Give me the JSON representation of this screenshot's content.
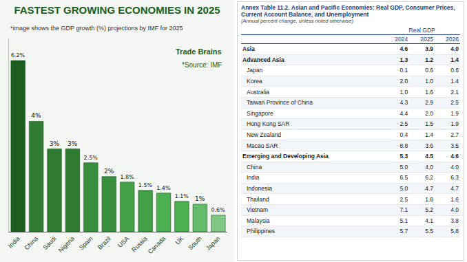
{
  "chart_data": {
    "type": "bar",
    "title": "FASTEST GROWING ECONOMIES IN 2025",
    "subtitle": "*image shows the GDP growth (%) projections by IMF for 2025",
    "annotations": [
      "Trade Brains",
      "*Source: IMF"
    ],
    "categories": [
      "India",
      "China",
      "Saudi",
      "Nigeria",
      "Spain",
      "Brazil",
      "USA",
      "Russia",
      "Canada",
      "UK",
      "South",
      "Japan"
    ],
    "values": [
      6.2,
      4,
      3,
      3,
      2.5,
      2,
      1.8,
      1.5,
      1.4,
      1.1,
      1,
      0.6
    ],
    "value_labels": [
      "6.2%",
      "4%",
      "3%",
      "3%",
      "2.5%",
      "2%",
      "1.8%",
      "1.5%",
      "1.4%",
      "1.1%",
      "1%",
      "0.6%"
    ],
    "colors": [
      "#1b5e20",
      "#2e7d32",
      "#2e7d32",
      "#2e7d32",
      "#388e3c",
      "#388e3c",
      "#43a047",
      "#43a047",
      "#4caf50",
      "#4caf50",
      "#66bb6a",
      "#81c784"
    ],
    "ylim": [
      0,
      7
    ],
    "yticks": [],
    "grid": false,
    "data_labels": true,
    "tick_labels": "x"
  },
  "table": {
    "title": "Annex Table 11.2. Asian and Pacific Economies: Real GDP, Consumer Prices, Current Account Balance, and Unemployment",
    "subtitle": "(Annual percent change, unless noted otherwise)",
    "group_header": "Real GDP",
    "columns": [
      "2024",
      "2025",
      "2026"
    ],
    "rows": [
      [
        "Asia",
        "4.6",
        "3.9",
        "4.0"
      ],
      [
        "Advanced Asia",
        "1.3",
        "1.2",
        "1.4"
      ],
      [
        "Japan",
        "0.1",
        "0.6",
        "0.6"
      ],
      [
        "Korea",
        "2.0",
        "1.0",
        "1.4"
      ],
      [
        "Australia",
        "1.0",
        "1.6",
        "2.1"
      ],
      [
        "Taiwan Province of China",
        "4.3",
        "2.9",
        "2.5"
      ],
      [
        "Singapore",
        "4.4",
        "2.0",
        "1.9"
      ],
      [
        "Hong Kong SAR",
        "2.5",
        "1.5",
        "1.9"
      ],
      [
        "New Zealand",
        "0.4",
        "1.4",
        "2.7"
      ],
      [
        "Macao SAR",
        "8.8",
        "3.6",
        "3.5"
      ],
      [
        "Emerging and Developing Asia",
        "5.3",
        "4.5",
        "4.6"
      ],
      [
        "China",
        "5.0",
        "4.0",
        "4.0"
      ],
      [
        "India",
        "6.5",
        "6.2",
        "6.3"
      ],
      [
        "Indonesia",
        "5.0",
        "4.7",
        "4.7"
      ],
      [
        "Thailand",
        "2.5",
        "1.8",
        "1.6"
      ],
      [
        "Vietnam",
        "7.1",
        "5.2",
        "4.0"
      ],
      [
        "Malaysia",
        "5.1",
        "4.1",
        "3.8"
      ],
      [
        "Philippines",
        "5.7",
        "5.5",
        "5.8"
      ]
    ],
    "bold_rows": [
      "Asia",
      "Advanced Asia",
      "Emerging and Developing Asia"
    ]
  }
}
